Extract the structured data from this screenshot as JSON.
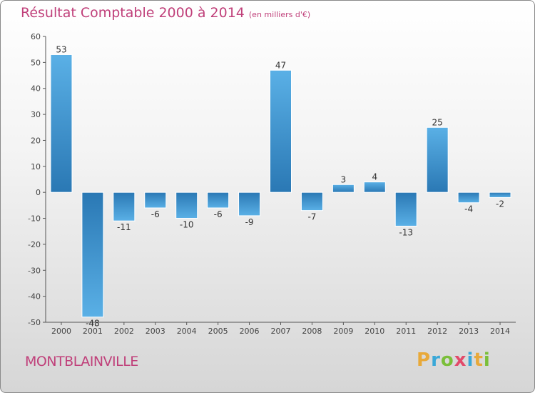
{
  "header": {
    "title": "Résultat Comptable 2000 à 2014",
    "subtitle": "(en milliers d'€)"
  },
  "footer": {
    "commune": "MONTBLAINVILLE",
    "logo_letters": [
      "P",
      "r",
      "o",
      "x",
      "i",
      "t",
      "i"
    ]
  },
  "colors": {
    "title": "#c0407a",
    "bar_dark": "#2a78b4",
    "bar_light": "#5ab0e6",
    "logo": [
      "#e8a93a",
      "#3aa8d8",
      "#7bbf3a",
      "#e24a6a",
      "#3aa8d8",
      "#e8a93a",
      "#7bbf3a"
    ]
  },
  "chart_data": {
    "type": "bar",
    "title": "Résultat Comptable 2000 à 2014",
    "subtitle": "(en milliers d'€)",
    "categories": [
      "2000",
      "2001",
      "2002",
      "2003",
      "2004",
      "2005",
      "2006",
      "2007",
      "2008",
      "2009",
      "2010",
      "2011",
      "2012",
      "2013",
      "2014"
    ],
    "values": [
      53,
      -48,
      -11,
      -6,
      -10,
      -6,
      -9,
      47,
      -7,
      3,
      4,
      -13,
      25,
      -4,
      -2
    ],
    "value_labels": [
      "53",
      "-48",
      "-11",
      "-6",
      "-10",
      "-6",
      "-9",
      "47",
      "-7",
      "3",
      "4",
      "-13",
      "25",
      "-4",
      "-2"
    ],
    "ylim": [
      -50,
      60
    ],
    "yticks": [
      60,
      50,
      40,
      30,
      20,
      10,
      0,
      -10,
      -20,
      -30,
      -40,
      -50
    ],
    "xlabel": "",
    "ylabel": "",
    "grid": false
  }
}
